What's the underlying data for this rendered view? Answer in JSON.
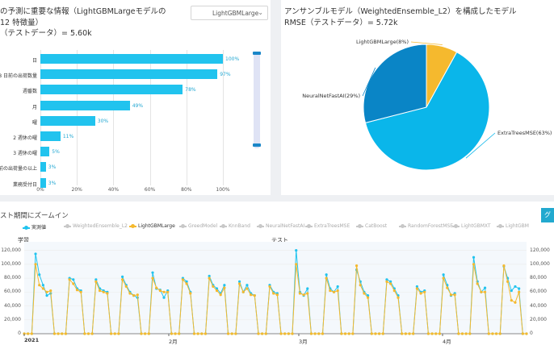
{
  "left_panel": {
    "title_lines": [
      "の予測に重要な情報（LightGBMLargeモデルの",
      "12 特徴量）",
      "（テストデータ）= 5.60k"
    ],
    "dropdown": {
      "selected": "LightGBMLarge",
      "icon": "caret-down-icon"
    }
  },
  "right_panel": {
    "title_lines": [
      "アンサンブルモデル（WeightedEnsemble_L2）を構成したモデル",
      "RMSE（テストデータ）= 5.72k"
    ]
  },
  "bottom_panel": {
    "title": "スト期間にズームイン",
    "button_label": "グ",
    "section_train": "学習",
    "section_test": "テスト",
    "legend": [
      {
        "label": "実測値",
        "color": "#21c3ee",
        "active": true
      },
      {
        "label": "WeightedEnsemble_L2",
        "color": "#c8c8c8",
        "active": false
      },
      {
        "label": "LightGBMLarge",
        "color": "#f5b92e",
        "active": true
      },
      {
        "label": "GreedModel",
        "color": "#c8c8c8",
        "active": false
      },
      {
        "label": "KnnBand",
        "color": "#c8c8c8",
        "active": false
      },
      {
        "label": "NeuralNetFastAI",
        "color": "#c8c8c8",
        "active": false
      },
      {
        "label": "ExtraTreesMSE",
        "color": "#c8c8c8",
        "active": false
      },
      {
        "label": "CatBoost",
        "color": "#c8c8c8",
        "active": false
      },
      {
        "label": "RandomForestMSE",
        "color": "#c8c8c8",
        "active": false
      },
      {
        "label": "LightGBMXT",
        "color": "#c8c8c8",
        "active": false
      },
      {
        "label": "LightGBM",
        "color": "#c8c8c8",
        "active": false
      }
    ],
    "y_ticks": [
      "120,000",
      "100,000",
      "80,000",
      "60,000",
      "40,000",
      "20,000",
      "0"
    ],
    "months": [
      "2021",
      "2月",
      "3月",
      "4月"
    ]
  },
  "chart_data": [
    {
      "type": "bar",
      "orientation": "horizontal",
      "categories": [
        "日",
        "8 日前の出荷数量",
        "週番数",
        "月",
        "曜",
        "2 週休の曜",
        "3 週休の曜",
        "前の出荷量の以上",
        "業務受付日"
      ],
      "values": [
        100,
        97,
        78,
        49,
        30,
        11,
        5,
        3,
        3
      ],
      "value_labels": [
        "100%",
        "97%",
        "78%",
        "49%",
        "30%",
        "11%",
        "5%",
        "3%",
        "3%"
      ],
      "x_ticks": [
        "0%",
        "20%",
        "40%",
        "60%",
        "80%",
        "100%"
      ],
      "xlim": [
        0,
        100
      ],
      "color": "#21c3ee"
    },
    {
      "type": "pie",
      "labels": [
        "ExtraTreesMSE(63%)",
        "NeuralNetFastAI(29%)",
        "LightGBMLarge(8%)"
      ],
      "values": [
        63,
        29,
        8
      ],
      "colors": [
        "#0ab6ea",
        "#0a85c6",
        "#f5b92e"
      ]
    },
    {
      "type": "line",
      "ylim": [
        0,
        130000
      ],
      "series": [
        {
          "name": "実測値",
          "color": "#21c3ee",
          "values": [
            0,
            0,
            0,
            115000,
            85000,
            70000,
            55000,
            58000,
            0,
            0,
            0,
            0,
            80000,
            78000,
            65000,
            62000,
            0,
            0,
            0,
            78000,
            65000,
            62000,
            60000,
            0,
            0,
            0,
            82000,
            70000,
            60000,
            55000,
            52000,
            0,
            0,
            0,
            88000,
            65000,
            63000,
            52000,
            62000,
            0,
            0,
            0,
            80000,
            75000,
            60000,
            0,
            0,
            0,
            0,
            83000,
            70000,
            65000,
            58000,
            70000,
            0,
            0,
            0,
            75000,
            60000,
            70000,
            58000,
            55000,
            0,
            0,
            0,
            70000,
            60000,
            58000,
            0,
            0,
            0,
            0,
            120000,
            60000,
            55000,
            65000,
            0,
            0,
            0,
            0,
            85000,
            65000,
            60000,
            68000,
            0,
            0,
            0,
            0,
            92000,
            75000,
            60000,
            55000,
            0,
            0,
            0,
            0,
            78000,
            75000,
            65000,
            55000,
            0,
            0,
            0,
            0,
            68000,
            60000,
            62000,
            0,
            0,
            0,
            0,
            85000,
            70000,
            55000,
            58000,
            0,
            0,
            0,
            0,
            110000,
            75000,
            60000,
            66000,
            0,
            0,
            0,
            0,
            97000,
            80000,
            62000,
            68000,
            65000,
            0,
            0
          ]
        },
        {
          "name": "LightGBMLarge",
          "color": "#f5b92e",
          "values": [
            0,
            0,
            0,
            100000,
            70000,
            65000,
            60000,
            62000,
            0,
            0,
            0,
            0,
            78000,
            72000,
            63000,
            60000,
            0,
            0,
            0,
            75000,
            62000,
            60000,
            58000,
            0,
            0,
            0,
            78000,
            68000,
            58000,
            55000,
            56000,
            0,
            0,
            0,
            80000,
            66000,
            62000,
            60000,
            60000,
            0,
            0,
            0,
            78000,
            72000,
            58000,
            0,
            0,
            0,
            0,
            80000,
            68000,
            62000,
            56000,
            66000,
            0,
            0,
            0,
            72000,
            60000,
            65000,
            56000,
            55000,
            0,
            0,
            0,
            68000,
            58000,
            56000,
            0,
            0,
            0,
            0,
            100000,
            58000,
            56000,
            58000,
            0,
            0,
            0,
            0,
            80000,
            62000,
            60000,
            62000,
            0,
            0,
            0,
            0,
            98000,
            70000,
            58000,
            52000,
            0,
            0,
            0,
            0,
            75000,
            72000,
            62000,
            52000,
            0,
            0,
            0,
            0,
            65000,
            58000,
            60000,
            0,
            0,
            0,
            0,
            80000,
            66000,
            56000,
            56000,
            0,
            0,
            0,
            0,
            100000,
            72000,
            60000,
            60000,
            0,
            0,
            0,
            0,
            98000,
            75000,
            48000,
            45000,
            60000,
            0,
            0
          ]
        }
      ]
    }
  ]
}
